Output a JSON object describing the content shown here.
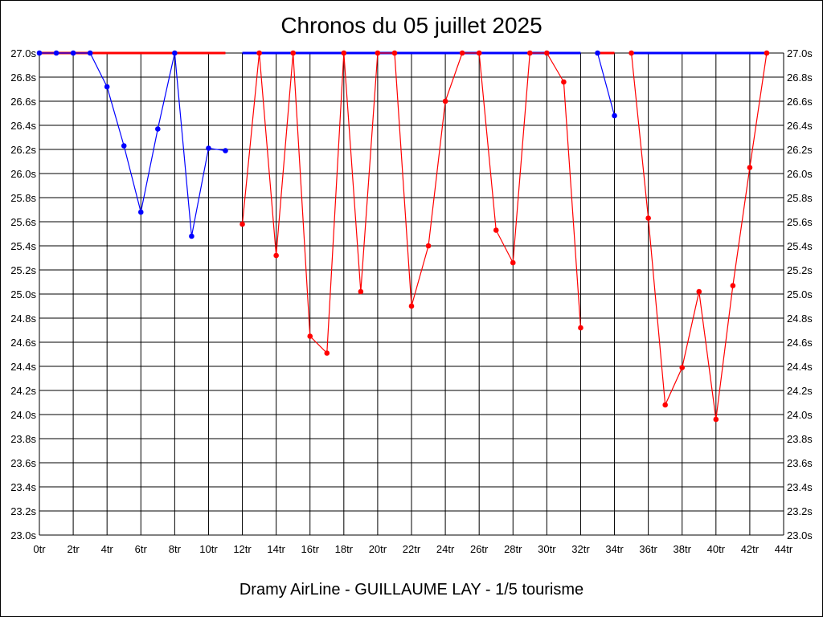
{
  "title": "Chronos du 05 juillet 2025",
  "footer": "Dramy AirLine - GUILLAUME LAY - 1/5 tourisme",
  "chart_data": {
    "type": "line",
    "title": "Chronos du 05 juillet 2025",
    "xlabel": "",
    "ylabel": "",
    "xlim": [
      0,
      44
    ],
    "ylim": [
      23.0,
      27.0
    ],
    "x_ticks": [
      "0tr",
      "2tr",
      "4tr",
      "6tr",
      "8tr",
      "10tr",
      "12tr",
      "14tr",
      "16tr",
      "18tr",
      "20tr",
      "22tr",
      "24tr",
      "26tr",
      "28tr",
      "30tr",
      "32tr",
      "34tr",
      "36tr",
      "38tr",
      "40tr",
      "42tr",
      "44tr"
    ],
    "y_ticks": [
      "23.0s",
      "23.2s",
      "23.4s",
      "23.6s",
      "23.8s",
      "24.0s",
      "24.2s",
      "24.4s",
      "24.6s",
      "24.8s",
      "25.0s",
      "25.2s",
      "25.4s",
      "25.6s",
      "25.8s",
      "26.0s",
      "26.2s",
      "26.4s",
      "26.6s",
      "26.8s",
      "27.0s"
    ],
    "grid": true,
    "colors": {
      "blue": "#0000ff",
      "red": "#ff0000"
    },
    "series": [
      {
        "color": "#0000ff",
        "points": [
          [
            0,
            27.0
          ],
          [
            1,
            27.0
          ],
          [
            2,
            27.0
          ],
          [
            3,
            27.0
          ],
          [
            4,
            26.72
          ],
          [
            5,
            26.23
          ],
          [
            6,
            25.68
          ],
          [
            7,
            26.37
          ],
          [
            8,
            27.0
          ],
          [
            9,
            25.48
          ],
          [
            10,
            26.21
          ],
          [
            11,
            26.19
          ]
        ]
      },
      {
        "color": "#ff0000",
        "points": [
          [
            12,
            25.58
          ],
          [
            13,
            27.0
          ],
          [
            14,
            25.32
          ],
          [
            15,
            27.0
          ],
          [
            16,
            24.65
          ],
          [
            17,
            24.51
          ],
          [
            18,
            27.0
          ],
          [
            19,
            25.02
          ],
          [
            20,
            27.0
          ],
          [
            21,
            27.0
          ],
          [
            22,
            24.9
          ],
          [
            23,
            25.4
          ],
          [
            24,
            26.6
          ],
          [
            25,
            27.0
          ],
          [
            26,
            27.0
          ],
          [
            27,
            25.53
          ],
          [
            28,
            25.26
          ],
          [
            29,
            27.0
          ],
          [
            30,
            27.0
          ],
          [
            31,
            26.76
          ],
          [
            32,
            24.72
          ]
        ]
      },
      {
        "color": "#0000ff",
        "points": [
          [
            33,
            27.0
          ],
          [
            34,
            26.48
          ]
        ]
      },
      {
        "color": "#ff0000",
        "points": [
          [
            35,
            27.0
          ],
          [
            36,
            25.63
          ],
          [
            37,
            24.08
          ],
          [
            38,
            24.39
          ],
          [
            39,
            25.02
          ],
          [
            40,
            23.96
          ],
          [
            41,
            25.07
          ],
          [
            42,
            26.05
          ],
          [
            43,
            27.0
          ]
        ]
      }
    ],
    "top_bars": [
      {
        "color": "#ff0000",
        "x": [
          0,
          11
        ]
      },
      {
        "color": "#0000ff",
        "x": [
          12,
          32
        ]
      },
      {
        "color": "#ff0000",
        "x": [
          33,
          34
        ]
      },
      {
        "color": "#0000ff",
        "x": [
          35,
          43
        ]
      }
    ]
  }
}
